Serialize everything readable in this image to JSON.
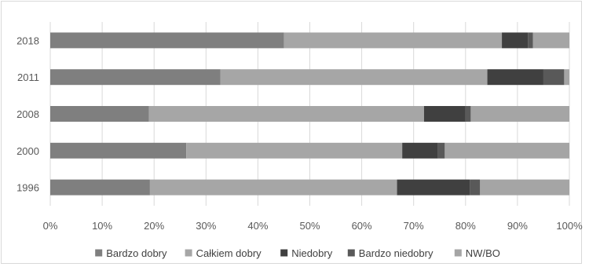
{
  "chart_data": {
    "type": "bar",
    "orientation": "horizontal",
    "stacked": "percent",
    "title": "",
    "xlabel": "",
    "ylabel": "",
    "categories": [
      "1996",
      "2000",
      "2008",
      "2011",
      "2018"
    ],
    "xlim": [
      0,
      100
    ],
    "xticks": [
      "0%",
      "10%",
      "20%",
      "30%",
      "40%",
      "50%",
      "60%",
      "70%",
      "80%",
      "90%",
      "100%"
    ],
    "grid": "vertical",
    "legend_position": "bottom",
    "series": [
      {
        "name": "Bardzo dobry",
        "color": "#7f7f7f",
        "values": [
          19.2,
          26.2,
          19.0,
          32.8,
          45.0
        ]
      },
      {
        "name": "Całkiem dobry",
        "color": "#a6a6a6",
        "values": [
          47.6,
          41.6,
          53.0,
          51.4,
          42.0
        ]
      },
      {
        "name": "Niedobry",
        "color": "#404040",
        "values": [
          14.0,
          6.9,
          8.0,
          10.8,
          5.0
        ]
      },
      {
        "name": "Bardzo niedobry",
        "color": "#595959",
        "values": [
          2.0,
          1.3,
          1.0,
          4.0,
          1.0
        ]
      },
      {
        "name": "NW/BO",
        "color": "#a5a5a5",
        "values": [
          17.2,
          24.0,
          19.0,
          1.0,
          7.0
        ]
      }
    ]
  }
}
